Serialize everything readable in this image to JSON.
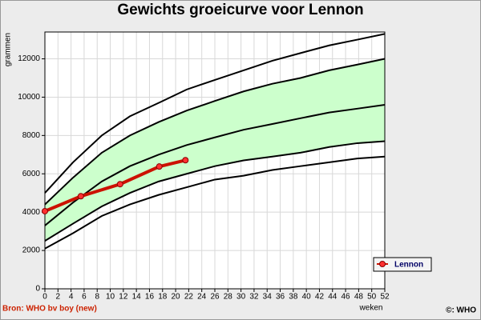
{
  "chart_data": {
    "type": "line",
    "title": "Gewichts groeicurve voor Lennon",
    "y_label": "grammen",
    "x_label": "weken",
    "source": "Bron: WHO bv boy (new)",
    "copyright": "©: WHO",
    "xlim": [
      0,
      52
    ],
    "ylim": [
      0,
      13400
    ],
    "xticks": [
      0,
      2,
      4,
      6,
      8,
      10,
      12,
      14,
      16,
      18,
      20,
      22,
      24,
      26,
      28,
      30,
      32,
      34,
      36,
      38,
      40,
      42,
      44,
      46,
      48,
      50,
      52
    ],
    "yticks": [
      0,
      2000,
      4000,
      6000,
      8000,
      10000,
      12000
    ],
    "grid": true,
    "legend": "right",
    "band_color": "#ccffcc",
    "reference_curves": [
      {
        "color": "#000000",
        "x": [
          0,
          4.3,
          8.7,
          13,
          17.4,
          21.7,
          26,
          30.4,
          34.8,
          39.1,
          43.5,
          47.8,
          52
        ],
        "values": [
          5000,
          6600,
          8000,
          9000,
          9700,
          10400,
          10900,
          11400,
          11900,
          12300,
          12700,
          13000,
          13300
        ]
      },
      {
        "color": "#000000",
        "x": [
          0,
          4.3,
          8.7,
          13,
          17.4,
          21.7,
          26,
          30.4,
          34.8,
          39.1,
          43.5,
          47.8,
          52
        ],
        "values": [
          4400,
          5800,
          7100,
          8000,
          8700,
          9300,
          9800,
          10300,
          10700,
          11000,
          11400,
          11700,
          12000
        ]
      },
      {
        "color": "#000000",
        "x": [
          0,
          4.3,
          8.7,
          13,
          17.4,
          21.7,
          26,
          30.4,
          34.8,
          39.1,
          43.5,
          47.8,
          52
        ],
        "values": [
          3300,
          4500,
          5600,
          6400,
          7000,
          7500,
          7900,
          8300,
          8600,
          8900,
          9200,
          9400,
          9600
        ]
      },
      {
        "color": "#000000",
        "x": [
          0,
          4.3,
          8.7,
          13,
          17.4,
          21.7,
          26,
          30.4,
          34.8,
          39.1,
          43.5,
          47.8,
          52
        ],
        "values": [
          2500,
          3400,
          4300,
          5000,
          5600,
          6000,
          6400,
          6700,
          6900,
          7100,
          7400,
          7600,
          7700
        ]
      },
      {
        "color": "#000000",
        "x": [
          0,
          4.3,
          8.7,
          13,
          17.4,
          21.7,
          26,
          30.4,
          34.8,
          39.1,
          43.5,
          47.8,
          52
        ],
        "values": [
          2100,
          2900,
          3800,
          4400,
          4900,
          5300,
          5700,
          5900,
          6200,
          6400,
          6600,
          6800,
          6900
        ]
      }
    ],
    "series": [
      {
        "name": "Lennon",
        "color": "#cc1100",
        "x": [
          0,
          5.5,
          11.5,
          17.5,
          21.5
        ],
        "values": [
          4050,
          4830,
          5460,
          6380,
          6710
        ]
      }
    ]
  }
}
